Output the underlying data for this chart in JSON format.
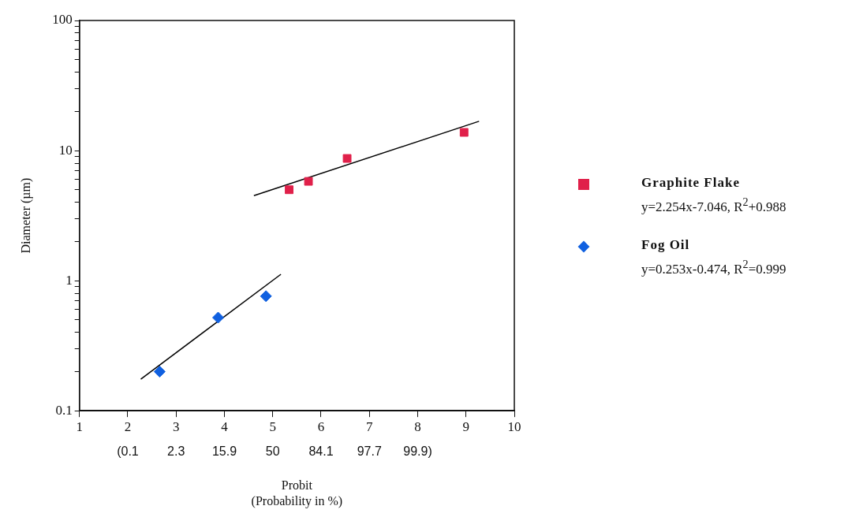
{
  "chart_data": {
    "type": "scatter",
    "xlabel": "Probit",
    "x2label": "(Probability in %)",
    "ylabel": "Diameter (µm)",
    "log": "y",
    "legend": "right",
    "grid": false,
    "xlim": [
      1,
      10
    ],
    "xticks": [
      1,
      2,
      3,
      4,
      5,
      6,
      7,
      8,
      9,
      10
    ],
    "ylim": [
      0.1,
      100
    ],
    "yticks": [
      0.1,
      {
        "value": 0.2,
        "label": null
      },
      {
        "value": 0.3,
        "label": null
      },
      {
        "value": 0.4,
        "label": null
      },
      {
        "value": 0.5,
        "label": null
      },
      {
        "value": 0.6,
        "label": null
      },
      {
        "value": 0.7,
        "label": null
      },
      {
        "value": 0.8,
        "label": null
      },
      {
        "value": 0.9,
        "label": null
      },
      1,
      {
        "value": 2,
        "label": null
      },
      {
        "value": 3,
        "label": null
      },
      {
        "value": 4,
        "label": null
      },
      {
        "value": 5,
        "label": null
      },
      {
        "value": 6,
        "label": null
      },
      {
        "value": 7,
        "label": null
      },
      {
        "value": 8,
        "label": null
      },
      {
        "value": 9,
        "label": null
      },
      10,
      {
        "value": 20,
        "label": null
      },
      {
        "value": 30,
        "label": null
      },
      {
        "value": 40,
        "label": null
      },
      {
        "value": 50,
        "label": null
      },
      {
        "value": 60,
        "label": null
      },
      {
        "value": 70,
        "label": null
      },
      {
        "value": 80,
        "label": null
      },
      {
        "value": 90,
        "label": null
      },
      100
    ],
    "series": [
      {
        "name": "Graphite Flake",
        "marker": "square",
        "color": "#e0204a",
        "x": [
          5.34,
          5.74,
          6.54,
          8.96
        ],
        "values": [
          5.0,
          5.8,
          8.7,
          13.8
        ]
      },
      {
        "name": "Fog Oil",
        "marker": "diamond",
        "color": "#1060e0",
        "x": [
          2.66,
          3.87,
          4.86
        ],
        "values": [
          0.2,
          0.52,
          0.76
        ]
      },
      {
        "type": "line",
        "color": "#000000",
        "x": [
          4.61,
          9.27
        ],
        "values": [
          4.5,
          16.8
        ]
      },
      {
        "type": "line",
        "color": "#000000",
        "x": [
          2.27,
          5.17
        ],
        "values": [
          0.175,
          1.12
        ]
      }
    ],
    "annotations": [
      "y=2.254x-7.046,  R$^{2}$+0.988",
      "y=0.253x-0.474,  R$^{2}$=0.999",
      "(0.1",
      "2.3",
      "15.9",
      "50",
      "84.1",
      "97.7",
      "99.9)"
    ]
  }
}
